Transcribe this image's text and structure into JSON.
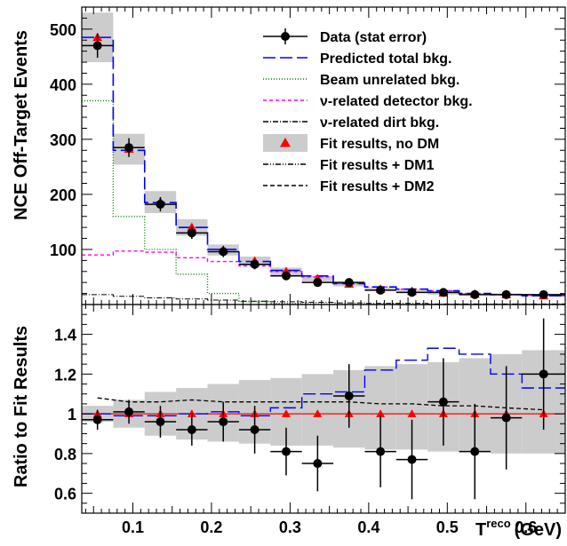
{
  "chart_data": [
    {
      "type": "histogram",
      "panel": "top",
      "xlabel": "T",
      "xlabel_superscript": "reco",
      "xlabel_unit": "(GeV)",
      "ylabel": "NCE Off-Target Events",
      "xlim": [
        0.035,
        0.65
      ],
      "ylim": [
        0,
        540
      ],
      "yticks": [
        100,
        200,
        300,
        400,
        500
      ],
      "bin_edges": [
        0.035,
        0.075,
        0.115,
        0.155,
        0.195,
        0.235,
        0.275,
        0.315,
        0.355,
        0.395,
        0.435,
        0.475,
        0.515,
        0.555,
        0.595,
        0.65
      ],
      "bin_centers": [
        0.055,
        0.095,
        0.135,
        0.175,
        0.215,
        0.255,
        0.295,
        0.335,
        0.375,
        0.415,
        0.455,
        0.495,
        0.535,
        0.575,
        0.6225
      ],
      "legend_position": "top-right",
      "legend": [
        {
          "label": "Data (stat error)",
          "style": "data",
          "color": "#000000"
        },
        {
          "label": "Predicted total bkg.",
          "style": "long-dash",
          "color": "#0000ff"
        },
        {
          "label": "Beam unrelated bkg.",
          "style": "dotted",
          "color": "#008000"
        },
        {
          "label": "ν-related detector bkg.",
          "style": "short-dash",
          "color": "#ff00ff"
        },
        {
          "label": "ν-related dirt bkg.",
          "style": "dash-dot",
          "color": "#000000"
        },
        {
          "label": "Fit results, no DM",
          "style": "band-triangle",
          "color": "#ff0000",
          "band_color": "#cccccc"
        },
        {
          "label": "Fit results + DM1",
          "style": "dash-dot-dot",
          "color": "#000000"
        },
        {
          "label": "Fit results + DM2",
          "style": "dashed",
          "color": "#000000"
        }
      ],
      "series": {
        "data": {
          "values": [
            470,
            285,
            182,
            130,
            96,
            73,
            52,
            40,
            40,
            26,
            22,
            22,
            18,
            18,
            18
          ],
          "errors": [
            22,
            17,
            13,
            11,
            10,
            9,
            7,
            6,
            6,
            5,
            5,
            5,
            4,
            4,
            4
          ]
        },
        "predicted_total": [
          485,
          280,
          185,
          140,
          100,
          78,
          62,
          52,
          38,
          32,
          28,
          25,
          20,
          18,
          16
        ],
        "beam_unrelated": [
          370,
          160,
          100,
          55,
          20,
          5,
          2,
          1,
          0.5,
          0.3,
          0.2,
          0.1,
          0.1,
          0.1,
          0.1
        ],
        "nu_detector": [
          90,
          97,
          95,
          85,
          78,
          70,
          60,
          50,
          38,
          32,
          28,
          25,
          20,
          18,
          16
        ],
        "nu_dirt": [
          18,
          15,
          12,
          10,
          8,
          6,
          5,
          4,
          3,
          2,
          2,
          1,
          1,
          1,
          1
        ],
        "fit_no_dm": [
          485,
          282,
          186,
          140,
          99,
          79,
          60,
          47,
          37,
          28,
          24,
          21,
          19,
          18,
          16
        ],
        "fit_band_half_width": [
          45,
          28,
          20,
          15,
          10,
          8,
          7,
          5,
          4,
          3,
          3,
          3,
          2,
          2,
          2
        ]
      }
    },
    {
      "type": "ratio",
      "panel": "bottom",
      "ylabel": "Ratio to Fit Results",
      "xlim": [
        0.035,
        0.65
      ],
      "ylim": [
        0.5,
        1.55
      ],
      "yticks": [
        0.6,
        0.8,
        1,
        1.2,
        1.4
      ],
      "xticks": [
        0.1,
        0.2,
        0.3,
        0.4,
        0.5,
        0.6
      ],
      "series": {
        "data_ratio": {
          "values": [
            0.97,
            1.01,
            0.96,
            0.92,
            0.96,
            0.92,
            0.81,
            0.75,
            1.09,
            0.81,
            0.77,
            1.06,
            0.81,
            0.98,
            1.2
          ],
          "errors": [
            0.05,
            0.06,
            0.08,
            0.08,
            0.1,
            0.12,
            0.12,
            0.14,
            0.16,
            0.18,
            0.2,
            0.22,
            0.24,
            0.26,
            0.28
          ]
        },
        "fit_no_dm_ratio": [
          1,
          1,
          1,
          1,
          1,
          1,
          1,
          1,
          1,
          1,
          1,
          1,
          1,
          1,
          1
        ],
        "predicted_ratio": [
          1.0,
          0.99,
          0.99,
          1.0,
          1.01,
          0.99,
          1.03,
          1.1,
          1.11,
          1.22,
          1.27,
          1.33,
          1.3,
          1.2,
          1.13
        ],
        "dm2_ratio": [
          1.08,
          1.06,
          1.06,
          1.07,
          1.06,
          1.06,
          1.06,
          1.06,
          1.06,
          1.05,
          1.05,
          1.04,
          1.04,
          1.03,
          1.02
        ],
        "band_low": [
          0.96,
          0.93,
          0.89,
          0.87,
          0.86,
          0.85,
          0.84,
          0.84,
          0.83,
          0.82,
          0.82,
          0.81,
          0.81,
          0.8,
          0.8
        ],
        "band_high": [
          1.04,
          1.07,
          1.11,
          1.13,
          1.15,
          1.17,
          1.18,
          1.2,
          1.22,
          1.24,
          1.25,
          1.26,
          1.28,
          1.3,
          1.32
        ]
      }
    }
  ]
}
